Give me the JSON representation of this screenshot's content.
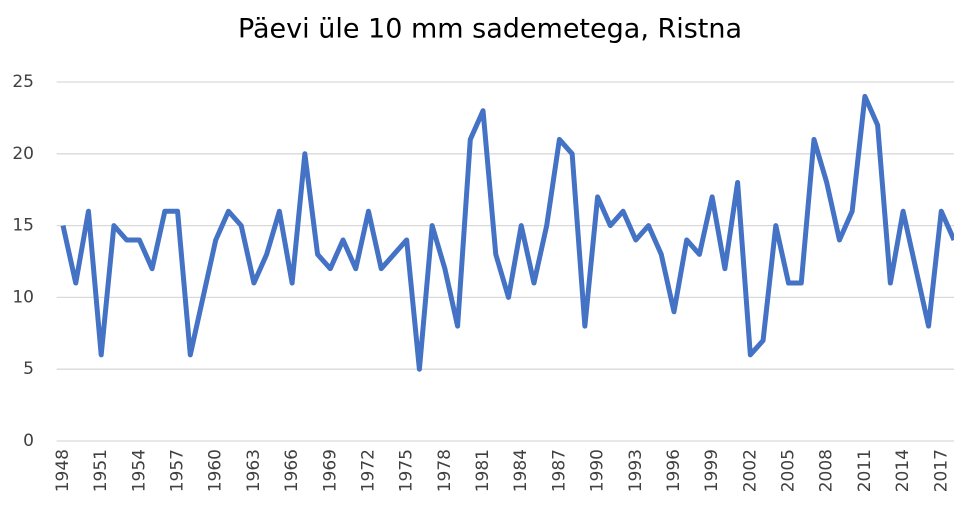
{
  "chart_data": {
    "type": "line",
    "title": "Päevi üle 10 mm sademetega, Ristna",
    "categories": [
      "1948",
      null,
      null,
      "1951",
      null,
      null,
      "1954",
      null,
      null,
      "1957",
      null,
      null,
      "1960",
      null,
      null,
      "1963",
      null,
      null,
      "1966",
      null,
      null,
      "1969",
      null,
      null,
      "1972",
      null,
      null,
      "1975",
      null,
      null,
      "1978",
      null,
      null,
      "1981",
      null,
      null,
      "1984",
      null,
      null,
      "1987",
      null,
      null,
      "1990",
      null,
      null,
      "1993",
      null,
      null,
      "1996",
      null,
      null,
      "1999",
      null,
      null,
      "2002",
      null,
      null,
      "2005",
      null,
      null,
      "2008",
      null,
      null,
      "2011",
      null,
      null,
      "2014",
      null,
      null,
      "2017",
      null
    ],
    "series": [
      {
        "name": "Päevi",
        "color": "#4472c4",
        "values": [
          15,
          11,
          16,
          6,
          15,
          14,
          14,
          12,
          16,
          16,
          6,
          10,
          14,
          16,
          15,
          11,
          13,
          16,
          11,
          20,
          13,
          12,
          14,
          12,
          16,
          12,
          13,
          14,
          5,
          15,
          12,
          8,
          21,
          23,
          13,
          10,
          15,
          11,
          15,
          21,
          20,
          8,
          17,
          15,
          16,
          14,
          15,
          13,
          9,
          14,
          13,
          17,
          12,
          18,
          6,
          7,
          15,
          11,
          11,
          21,
          18,
          14,
          16,
          24,
          22,
          11,
          16,
          12,
          8,
          16,
          14
        ]
      }
    ],
    "ylim": [
      0,
      25
    ],
    "yticks": [
      0,
      5,
      10,
      15,
      20,
      25
    ],
    "grid": true
  }
}
